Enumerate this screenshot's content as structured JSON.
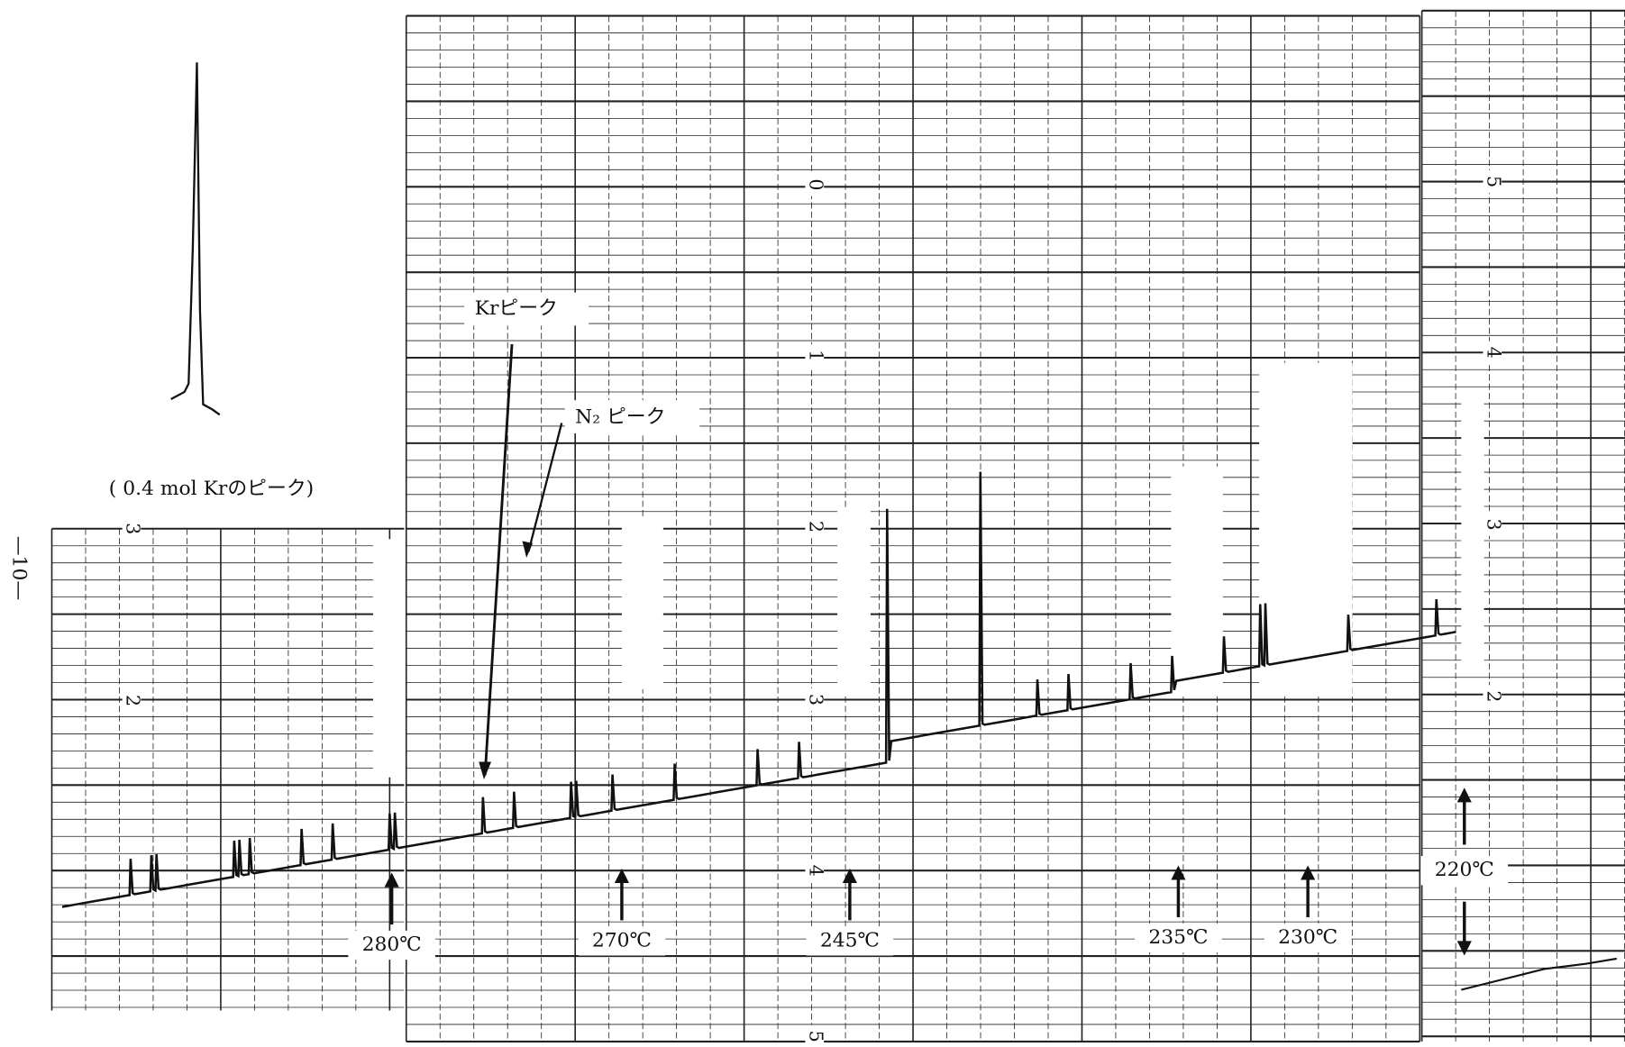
{
  "page_number": "—10—",
  "caption": "( 0.4 mol Krのピーク)",
  "labels": {
    "kr_peak": "Krピーク",
    "n2_peak": "N₂ ピーク"
  },
  "temperatures": [
    "280℃",
    "270℃",
    "245℃",
    "235℃",
    "230℃",
    "220℃"
  ],
  "scale_marks": {
    "left": [
      "3",
      "2"
    ],
    "center": [
      "0",
      "1",
      "2",
      "3",
      "4",
      "5"
    ],
    "right": [
      "5",
      "4",
      "3",
      "2"
    ]
  }
}
